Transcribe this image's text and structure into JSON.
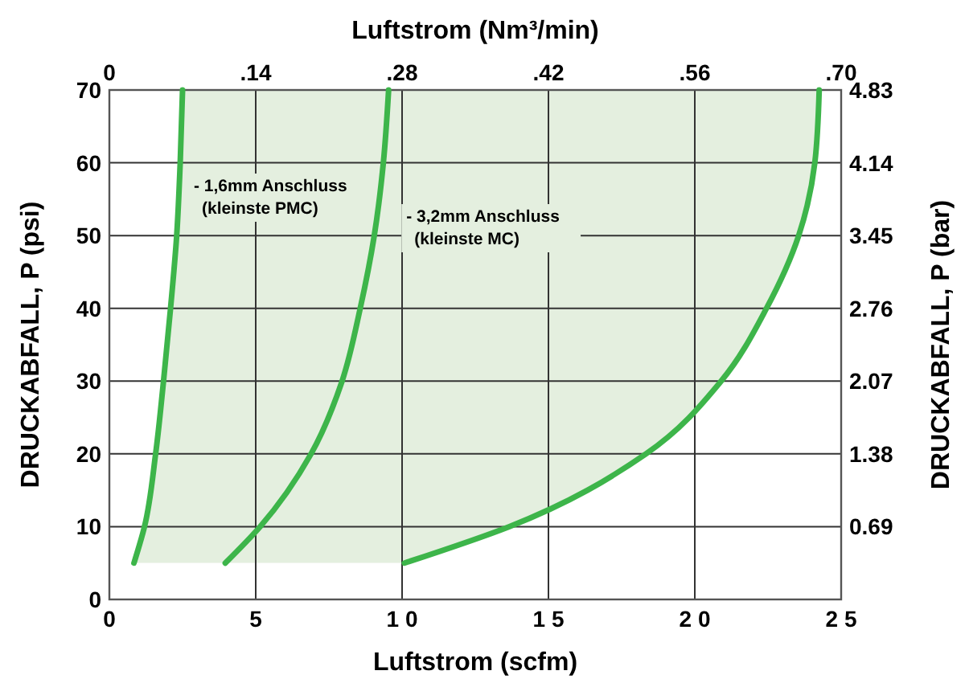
{
  "chart_data": {
    "type": "line",
    "xlabel": "Luftstrom (scfm)",
    "x2label": "Luftstrom (Nm³/min)",
    "ylabel": "DRUCKABFALL,  P (psi)",
    "y2label": "DRUCKABFALL,  P (bar)",
    "xlim": [
      0,
      25
    ],
    "xticks": [
      0,
      5,
      {
        "value": 10,
        "label": "1 0"
      },
      {
        "value": 15,
        "label": "1 5"
      },
      {
        "value": 20,
        "label": "2 0"
      },
      {
        "value": 25,
        "label": "2 5"
      }
    ],
    "x2lim": [
      0,
      0.7
    ],
    "x2ticks": [
      0,
      {
        "value": 0.14,
        "label": ".14"
      },
      {
        "value": 0.28,
        "label": ".28"
      },
      {
        "value": 0.42,
        "label": ".42"
      },
      {
        "value": 0.56,
        "label": ".56"
      },
      {
        "value": 0.7,
        "label": ".70"
      }
    ],
    "ylim": [
      0,
      70
    ],
    "yticks": [
      0,
      10,
      20,
      30,
      40,
      50,
      60,
      70
    ],
    "y2lim": [
      0,
      4.83
    ],
    "y2ticks": [
      0.69,
      1.38,
      2.07,
      2.76,
      3.45,
      4.14,
      4.83
    ],
    "grid": true,
    "marker": "none",
    "line_style": "solid",
    "series": [
      {
        "color": "#3db54a",
        "x": [
          0.84,
          1.2,
          1.58,
          1.85,
          2.09,
          2.3,
          2.42,
          2.5
        ],
        "values": [
          5,
          10,
          20,
          30,
          40,
          50,
          60,
          70
        ]
      },
      {
        "color": "#3db54a",
        "x": [
          3.96,
          5.15,
          6.89,
          7.95,
          8.57,
          9.05,
          9.36,
          9.54
        ],
        "values": [
          5,
          10,
          20,
          30,
          40,
          50,
          60,
          70
        ]
      },
      {
        "color": "#3db54a",
        "x": [
          10.08,
          13.66,
          18.33,
          20.9,
          22.45,
          23.55,
          24.1,
          24.25
        ],
        "values": [
          5,
          10,
          20,
          30,
          40,
          50,
          60,
          70
        ]
      }
    ],
    "bands": [
      {
        "axis": "y",
        "from": 5,
        "to": 70,
        "color": "#e4efdf"
      }
    ],
    "annotations": [
      "- 1,6mm Anschluss\n(kleinste PMC)",
      "- 3,2mm Anschluss\n(kleinste MC)"
    ]
  }
}
